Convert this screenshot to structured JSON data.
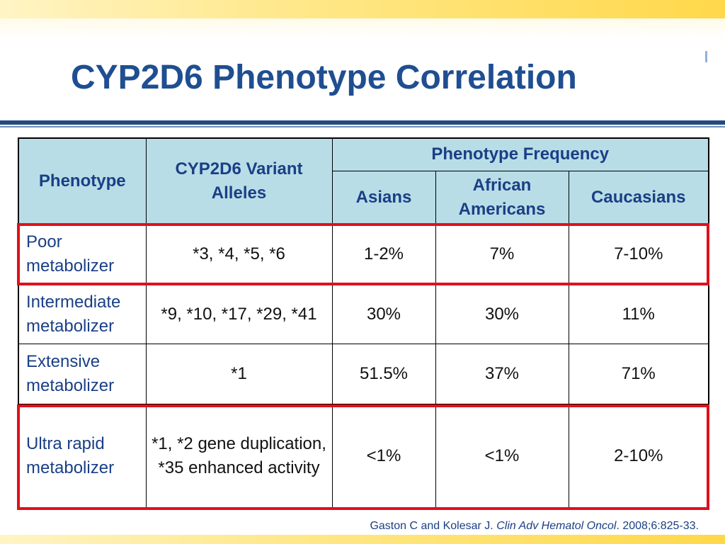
{
  "slide": {
    "title": "CYP2D6 Phenotype Correlation",
    "accent_color": "#1f4e91",
    "highlight_color": "#e0101b"
  },
  "table": {
    "header": {
      "phenotype": "Phenotype",
      "variant_alleles": "CYP2D6 Variant Alleles",
      "frequency_group": "Phenotype Frequency",
      "asians": "Asians",
      "african_americans": "African Americans",
      "caucasians": "Caucasians"
    },
    "rows": [
      {
        "phenotype": "Poor metabolizer",
        "alleles": "*3, *4, *5, *6",
        "asians": "1-2%",
        "african_americans": "7%",
        "caucasians": "7-10%",
        "highlighted": true
      },
      {
        "phenotype": "Intermediate metabolizer",
        "alleles": "*9, *10, *17, *29, *41",
        "asians": "30%",
        "african_americans": "30%",
        "caucasians": "11%",
        "highlighted": false
      },
      {
        "phenotype": "Extensive metabolizer",
        "alleles": "*1",
        "asians": "51.5%",
        "african_americans": "37%",
        "caucasians": "71%",
        "highlighted": false
      },
      {
        "phenotype": "Ultra rapid metabolizer",
        "alleles": "*1, *2 gene duplication, *35 enhanced activity",
        "asians": "<1%",
        "african_americans": "<1%",
        "caucasians": "2-10%",
        "highlighted": true
      }
    ]
  },
  "citation": {
    "authors": "Gaston C and Kolesar J.",
    "journal": "Clin Adv Hematol Oncol",
    "details": ". 2008;6:825-33."
  }
}
